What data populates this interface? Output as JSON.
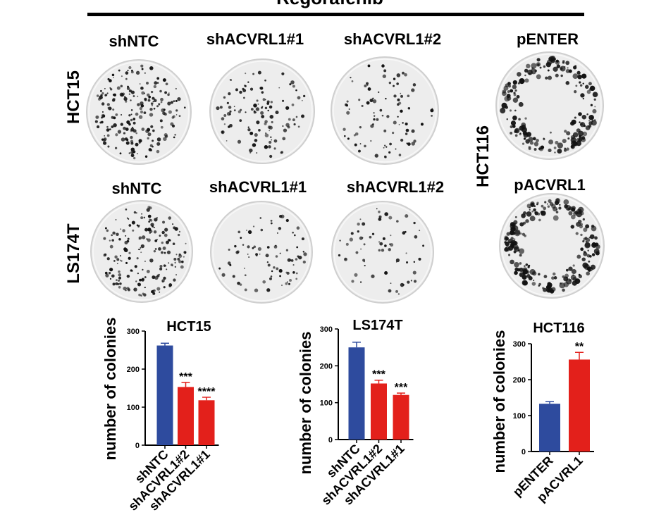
{
  "header": {
    "treatment": "Regorafenib"
  },
  "dish_panels": {
    "hct15": {
      "cell_line": "HCT15",
      "labels": [
        "shNTC",
        "shACVRL1#1",
        "shACVRL1#2"
      ],
      "density": [
        1.0,
        0.45,
        0.3
      ]
    },
    "ls174t": {
      "cell_line": "LS174T",
      "labels": [
        "shNTC",
        "shACVRL1#1",
        "shACVRL1#2"
      ],
      "density": [
        0.85,
        0.25,
        0.15
      ]
    },
    "hct116": {
      "cell_line": "HCT116",
      "labels": [
        "pENTER",
        "pACVRL1"
      ],
      "density": [
        0.9,
        1.0
      ]
    }
  },
  "colors": {
    "control": "#2E4B9E",
    "treated": "#E3201B",
    "colony": "#111111",
    "dish": "#EDEDED"
  },
  "chart_data": [
    {
      "type": "bar",
      "title": "HCT15",
      "ylabel": "number of colonies",
      "categories": [
        "shNTC",
        "shACVRL1#2",
        "shACVRL1#1"
      ],
      "values": [
        262,
        153,
        118
      ],
      "errors": [
        6,
        12,
        8
      ],
      "annotations": [
        "",
        "***",
        "****"
      ],
      "ylim": [
        0,
        300
      ],
      "yticks": [
        "0",
        "100",
        "200",
        "300"
      ]
    },
    {
      "type": "bar",
      "title": "LS174T",
      "ylabel": "number of colonies",
      "categories": [
        "shNTC",
        "shACVRL1#2",
        "shACVRL1#1"
      ],
      "values": [
        250,
        152,
        121
      ],
      "errors": [
        14,
        9,
        5
      ],
      "annotations": [
        "",
        "***",
        "***"
      ],
      "ylim": [
        0,
        300
      ],
      "yticks": [
        "0",
        "100",
        "200",
        "300"
      ]
    },
    {
      "type": "bar",
      "title": "HCT116",
      "ylabel": "number of colonies",
      "categories": [
        "pENTER",
        "pACVRL1"
      ],
      "values": [
        133,
        256
      ],
      "errors": [
        6,
        20
      ],
      "annotations": [
        "",
        "**"
      ],
      "ylim": [
        0,
        300
      ],
      "yticks": [
        "0",
        "100",
        "200",
        "300"
      ]
    }
  ]
}
